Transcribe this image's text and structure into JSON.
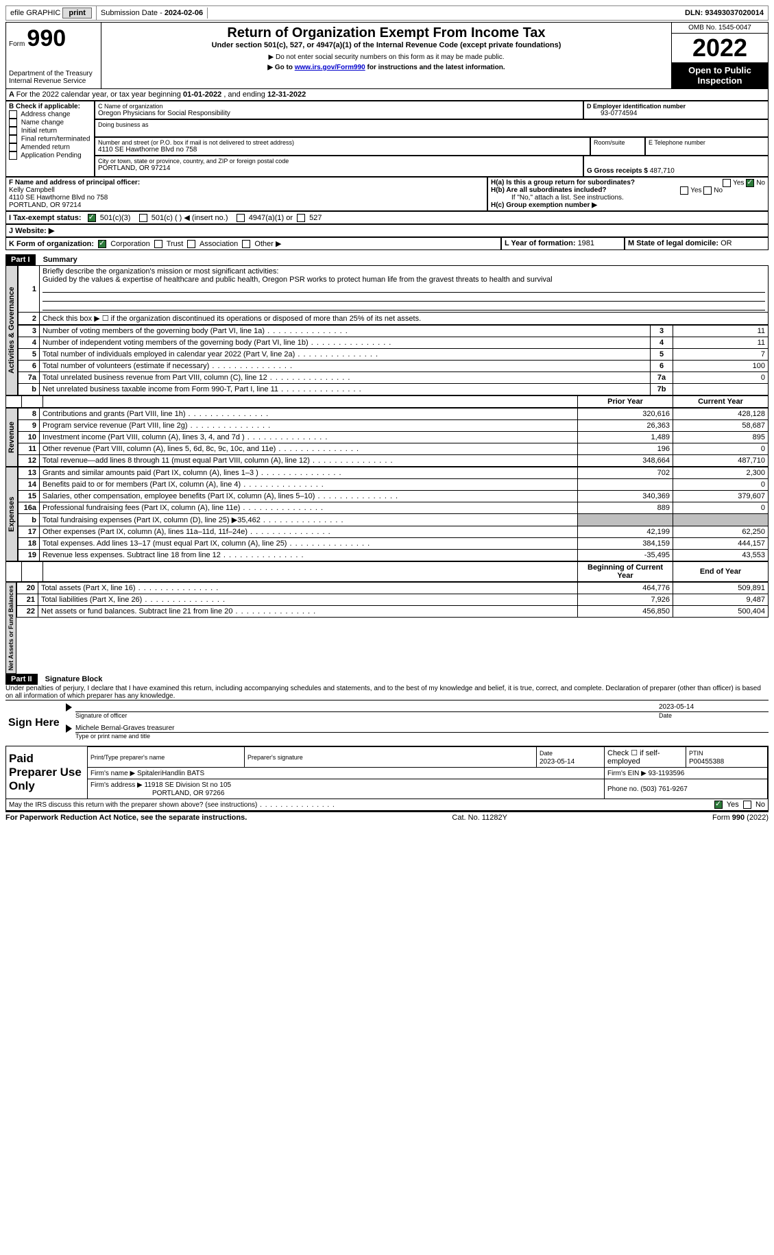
{
  "topbar": {
    "efile": "efile GRAPHIC",
    "print": "print",
    "submission_label": "Submission Date - ",
    "submission_date": "2024-02-06",
    "dln_label": "DLN: ",
    "dln": "93493037020014"
  },
  "header": {
    "form_label": "Form",
    "form_number": "990",
    "dept": "Department of the Treasury",
    "irs": "Internal Revenue Service",
    "title": "Return of Organization Exempt From Income Tax",
    "subtitle": "Under section 501(c), 527, or 4947(a)(1) of the Internal Revenue Code (except private foundations)",
    "note1": "▶ Do not enter social security numbers on this form as it may be made public.",
    "note2_pre": "▶ Go to ",
    "note2_link": "www.irs.gov/Form990",
    "note2_post": " for instructions and the latest information.",
    "omb_label": "OMB No. 1545-0047",
    "year": "2022",
    "open_public": "Open to Public Inspection"
  },
  "periodA": {
    "text_pre": "For the 2022 calendar year, or tax year beginning ",
    "begin": "01-01-2022",
    "mid": " , and ending ",
    "end": "12-31-2022"
  },
  "boxB": {
    "title": "B Check if applicable:",
    "items": [
      "Address change",
      "Name change",
      "Initial return",
      "Final return/terminated",
      "Amended return",
      "Application Pending"
    ]
  },
  "boxC": {
    "name_lbl": "C Name of organization",
    "name": "Oregon Physicians for Social Responsibility",
    "dba_lbl": "Doing business as",
    "addr_lbl": "Number and street (or P.O. box if mail is not delivered to street address)",
    "addr": "4110 SE Hawthorne Blvd no 758",
    "room_lbl": "Room/suite",
    "city_lbl": "City or town, state or province, country, and ZIP or foreign postal code",
    "city": "PORTLAND, OR  97214"
  },
  "boxD": {
    "lbl": "D Employer identification number",
    "val": "93-0774594"
  },
  "boxE": {
    "lbl": "E Telephone number",
    "val": ""
  },
  "boxG": {
    "lbl": "G Gross receipts $ ",
    "val": "487,710"
  },
  "boxF": {
    "lbl": "F  Name and address of principal officer:",
    "name": "Kelly Campbell",
    "addr1": "4110 SE Hawthorne Blvd no 758",
    "addr2": "PORTLAND, OR  97214"
  },
  "boxH": {
    "ha_lbl": "H(a)  Is this a group return for subordinates?",
    "hb_lbl": "H(b)  Are all subordinates included?",
    "hb_note": "If \"No,\" attach a list. See instructions.",
    "hc_lbl": "H(c)  Group exemption number ▶",
    "yes": "Yes",
    "no": "No"
  },
  "boxI": {
    "lbl": "I  Tax-exempt status:",
    "opt1": "501(c)(3)",
    "opt2": "501(c) (  ) ◀ (insert no.)",
    "opt3": "4947(a)(1) or",
    "opt4": "527"
  },
  "boxJ": {
    "lbl": "J  Website: ▶"
  },
  "boxK": {
    "lbl": "K Form of organization:",
    "opts": [
      "Corporation",
      "Trust",
      "Association",
      "Other ▶"
    ]
  },
  "boxL": {
    "lbl": "L Year of formation: ",
    "val": "1981"
  },
  "boxM": {
    "lbl": "M State of legal domicile: ",
    "val": "OR"
  },
  "part1": {
    "hdr": "Part I",
    "title": "Summary",
    "q1_lbl": "Briefly describe the organization's mission or most significant activities:",
    "q1_text": "Guided by the values & expertise of healthcare and public health, Oregon PSR works to protect human life from the gravest threats to health and survival",
    "q2": "Check this box ▶ ☐ if the organization discontinued its operations or disposed of more than 25% of its net assets.",
    "lines_ag": [
      {
        "n": "3",
        "t": "Number of voting members of the governing body (Part VI, line 1a)",
        "box": "3",
        "v": "11"
      },
      {
        "n": "4",
        "t": "Number of independent voting members of the governing body (Part VI, line 1b)",
        "box": "4",
        "v": "11"
      },
      {
        "n": "5",
        "t": "Total number of individuals employed in calendar year 2022 (Part V, line 2a)",
        "box": "5",
        "v": "7"
      },
      {
        "n": "6",
        "t": "Total number of volunteers (estimate if necessary)",
        "box": "6",
        "v": "100"
      },
      {
        "n": "7a",
        "t": "Total unrelated business revenue from Part VIII, column (C), line 12",
        "box": "7a",
        "v": "0"
      },
      {
        "n": " b",
        "t": "Net unrelated business taxable income from Form 990-T, Part I, line 11",
        "box": "7b",
        "v": ""
      }
    ],
    "col_prior": "Prior Year",
    "col_current": "Current Year",
    "revenue": [
      {
        "n": "8",
        "t": "Contributions and grants (Part VIII, line 1h)",
        "p": "320,616",
        "c": "428,128"
      },
      {
        "n": "9",
        "t": "Program service revenue (Part VIII, line 2g)",
        "p": "26,363",
        "c": "58,687"
      },
      {
        "n": "10",
        "t": "Investment income (Part VIII, column (A), lines 3, 4, and 7d )",
        "p": "1,489",
        "c": "895"
      },
      {
        "n": "11",
        "t": "Other revenue (Part VIII, column (A), lines 5, 6d, 8c, 9c, 10c, and 11e)",
        "p": "196",
        "c": "0"
      },
      {
        "n": "12",
        "t": "Total revenue—add lines 8 through 11 (must equal Part VIII, column (A), line 12)",
        "p": "348,664",
        "c": "487,710"
      }
    ],
    "expenses": [
      {
        "n": "13",
        "t": "Grants and similar amounts paid (Part IX, column (A), lines 1–3 )",
        "p": "702",
        "c": "2,300"
      },
      {
        "n": "14",
        "t": "Benefits paid to or for members (Part IX, column (A), line 4)",
        "p": "",
        "c": "0"
      },
      {
        "n": "15",
        "t": "Salaries, other compensation, employee benefits (Part IX, column (A), lines 5–10)",
        "p": "340,369",
        "c": "379,607"
      },
      {
        "n": "16a",
        "t": "Professional fundraising fees (Part IX, column (A), line 11e)",
        "p": "889",
        "c": "0"
      },
      {
        "n": "b",
        "t": "Total fundraising expenses (Part IX, column (D), line 25) ▶35,462",
        "p": "grey",
        "c": "grey"
      },
      {
        "n": "17",
        "t": "Other expenses (Part IX, column (A), lines 11a–11d, 11f–24e)",
        "p": "42,199",
        "c": "62,250"
      },
      {
        "n": "18",
        "t": "Total expenses. Add lines 13–17 (must equal Part IX, column (A), line 25)",
        "p": "384,159",
        "c": "444,157"
      },
      {
        "n": "19",
        "t": "Revenue less expenses. Subtract line 18 from line 12",
        "p": "-35,495",
        "c": "43,553"
      }
    ],
    "col_begin": "Beginning of Current Year",
    "col_end": "End of Year",
    "netassets": [
      {
        "n": "20",
        "t": "Total assets (Part X, line 16)",
        "p": "464,776",
        "c": "509,891"
      },
      {
        "n": "21",
        "t": "Total liabilities (Part X, line 26)",
        "p": "7,926",
        "c": "9,487"
      },
      {
        "n": "22",
        "t": "Net assets or fund balances. Subtract line 21 from line 20",
        "p": "456,850",
        "c": "500,404"
      }
    ],
    "tab_ag": "Activities & Governance",
    "tab_rev": "Revenue",
    "tab_exp": "Expenses",
    "tab_net": "Net Assets or Fund Balances"
  },
  "part2": {
    "hdr": "Part II",
    "title": "Signature Block",
    "decl": "Under penalties of perjury, I declare that I have examined this return, including accompanying schedules and statements, and to the best of my knowledge and belief, it is true, correct, and complete. Declaration of preparer (other than officer) is based on all information of which preparer has any knowledge.",
    "sign_here": "Sign Here",
    "sig_date": "2023-05-14",
    "sig_officer_lbl": "Signature of officer",
    "date_lbl": "Date",
    "officer_name": "Michele Bernal-Graves  treasurer",
    "type_lbl": "Type or print name and title",
    "paid_prep": "Paid Preparer Use Only",
    "prep_name_lbl": "Print/Type preparer's name",
    "prep_sig_lbl": "Preparer's signature",
    "prep_date_lbl": "Date",
    "prep_date": "2023-05-14",
    "self_emp": "Check ☐ if self-employed",
    "ptin_lbl": "PTIN",
    "ptin": "P00455388",
    "firm_name_lbl": "Firm's name    ▶ ",
    "firm_name": "SpitaleriHandlin BATS",
    "firm_ein_lbl": "Firm's EIN ▶ ",
    "firm_ein": "93-1193596",
    "firm_addr_lbl": "Firm's address ▶ ",
    "firm_addr1": "11918 SE Division St no 105",
    "firm_addr2": "PORTLAND, OR  97266",
    "phone_lbl": "Phone no. ",
    "phone": "(503) 761-9267",
    "discuss": "May the IRS discuss this return with the preparer shown above? (see instructions)",
    "yes": "Yes",
    "no": "No"
  },
  "footer": {
    "left": "For Paperwork Reduction Act Notice, see the separate instructions.",
    "mid": "Cat. No. 11282Y",
    "right": "Form 990 (2022)"
  }
}
